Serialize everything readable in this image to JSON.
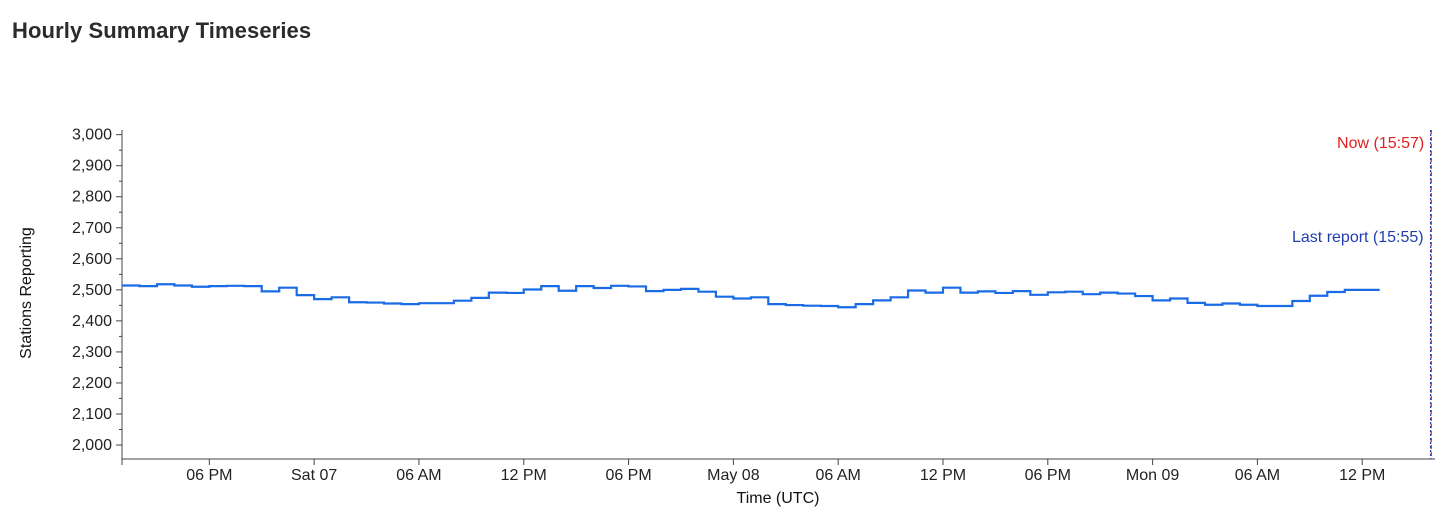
{
  "page": {
    "title": "Hourly Summary Timeseries"
  },
  "colors": {
    "series": "#1a6be6",
    "now_marker": "#e02020",
    "last_report_marker": "#1f3fb0",
    "axis": "#444444"
  },
  "chart_data": {
    "type": "line",
    "step": true,
    "title": "",
    "xlabel": "Time (UTC)",
    "ylabel": "Stations Reporting",
    "xlim": [
      "2022-05-06T13:00",
      "2022-05-09T16:10"
    ],
    "ylim": [
      1955,
      3015
    ],
    "yticks": [
      2000,
      2100,
      2200,
      2300,
      2400,
      2500,
      2600,
      2700,
      2800,
      2900,
      3000
    ],
    "ytick_labels": [
      "2,000",
      "2,100",
      "2,200",
      "2,300",
      "2,400",
      "2,500",
      "2,600",
      "2,700",
      "2,800",
      "2,900",
      "3,000"
    ],
    "xticks": [
      "2022-05-06T18:00",
      "2022-05-07T00:00",
      "2022-05-07T06:00",
      "2022-05-07T12:00",
      "2022-05-07T18:00",
      "2022-05-08T00:00",
      "2022-05-08T06:00",
      "2022-05-08T12:00",
      "2022-05-08T18:00",
      "2022-05-09T00:00",
      "2022-05-09T06:00",
      "2022-05-09T12:00"
    ],
    "xtick_labels": [
      "06 PM",
      "Sat 07",
      "06 AM",
      "12 PM",
      "06 PM",
      "May 08",
      "06 AM",
      "12 PM",
      "06 PM",
      "Mon 09",
      "06 AM",
      "12 PM"
    ],
    "grid": false,
    "series": [
      {
        "start": "2022-05-06T13:00",
        "interval_hours": 1,
        "values": [
          2514,
          2512,
          2518,
          2514,
          2510,
          2512,
          2513,
          2512,
          2495,
          2507,
          2483,
          2470,
          2476,
          2460,
          2459,
          2456,
          2454,
          2457,
          2457,
          2465,
          2474,
          2491,
          2490,
          2501,
          2512,
          2497,
          2512,
          2506,
          2513,
          2511,
          2496,
          2500,
          2503,
          2494,
          2478,
          2472,
          2476,
          2454,
          2451,
          2449,
          2448,
          2444,
          2454,
          2466,
          2476,
          2498,
          2491,
          2507,
          2491,
          2495,
          2490,
          2496,
          2484,
          2492,
          2494,
          2486,
          2491,
          2488,
          2480,
          2466,
          2472,
          2458,
          2452,
          2456,
          2452,
          2448,
          2448,
          2464,
          2481,
          2493,
          2500,
          2500
        ]
      }
    ],
    "markers": [
      {
        "label": "Now (15:57)",
        "time": "2022-05-09T15:57",
        "color": "#e02020",
        "style": "dashed"
      },
      {
        "label": "Last report (15:55)",
        "time": "2022-05-09T15:55",
        "color": "#1f3fb0",
        "style": "dotted"
      }
    ]
  }
}
